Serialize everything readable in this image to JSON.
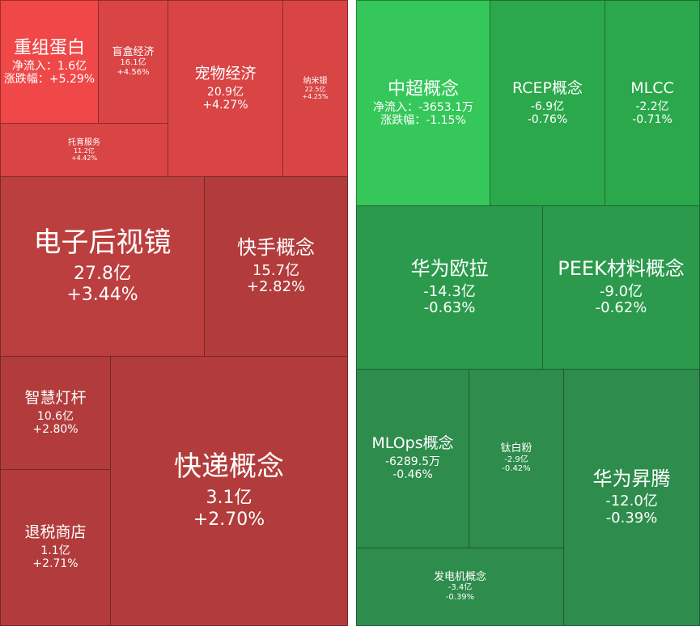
{
  "red_tiles": [
    {
      "name": "重组蛋白",
      "line1": "净流入：1.6亿",
      "line2": "涨跌幅：+5.29%",
      "color": "#f04848"
    },
    {
      "name": "盲盒经济",
      "line1": "16.1亿",
      "line2": "+4.56%",
      "color": "#d94444"
    },
    {
      "name": "宠物经济",
      "line1": "20.9亿",
      "line2": "+4.27%",
      "color": "#d94444"
    },
    {
      "name": "纳米银",
      "line1": "22.5亿",
      "line2": "+4.25%",
      "color": "#d94444"
    },
    {
      "name": "托育服务",
      "line1": "11.2亿",
      "line2": "+4.42%",
      "color": "#d94444"
    },
    {
      "name": "电子后视镜",
      "line1": "27.8亿",
      "line2": "+3.44%",
      "color": "#bb3f3f"
    },
    {
      "name": "快手概念",
      "line1": "15.7亿",
      "line2": "+2.82%",
      "color": "#b23c3c"
    },
    {
      "name": "智慧灯杆",
      "line1": "10.6亿",
      "line2": "+2.80%",
      "color": "#b23c3c"
    },
    {
      "name": "快递概念",
      "line1": "3.1亿",
      "line2": "+2.70%",
      "color": "#b23c3c"
    },
    {
      "name": "退税商店",
      "line1": "1.1亿",
      "line2": "+2.71%",
      "color": "#b23c3c"
    }
  ],
  "green_tiles": [
    {
      "name": "中超概念",
      "line1": "净流入：-3653.1万",
      "line2": "涨跌幅：-1.15%",
      "color": "#35c759"
    },
    {
      "name": "RCEP概念",
      "line1": "-6.9亿",
      "line2": "-0.76%",
      "color": "#2ba84b"
    },
    {
      "name": "MLCC",
      "line1": "-2.2亿",
      "line2": "-0.71%",
      "color": "#2ba84b"
    },
    {
      "name": "华为欧拉",
      "line1": "-14.3亿",
      "line2": "-0.63%",
      "color": "#2b9a4c"
    },
    {
      "name": "PEEK材料概念",
      "line1": "-9.0亿",
      "line2": "-0.62%",
      "color": "#2b9a4c"
    },
    {
      "name": "MLOps概念",
      "line1": "-6289.5万",
      "line2": "-0.46%",
      "color": "#2e8c4c"
    },
    {
      "name": "钛白粉",
      "line1": "-2.9亿",
      "line2": "-0.42%",
      "color": "#2e8c4c"
    },
    {
      "name": "华为昇腾",
      "line1": "-12.0亿",
      "line2": "-0.39%",
      "color": "#2e8c4c"
    },
    {
      "name": "发电机概念",
      "line1": "-3.4亿",
      "line2": "-0.39%",
      "color": "#2e8c4c"
    }
  ]
}
